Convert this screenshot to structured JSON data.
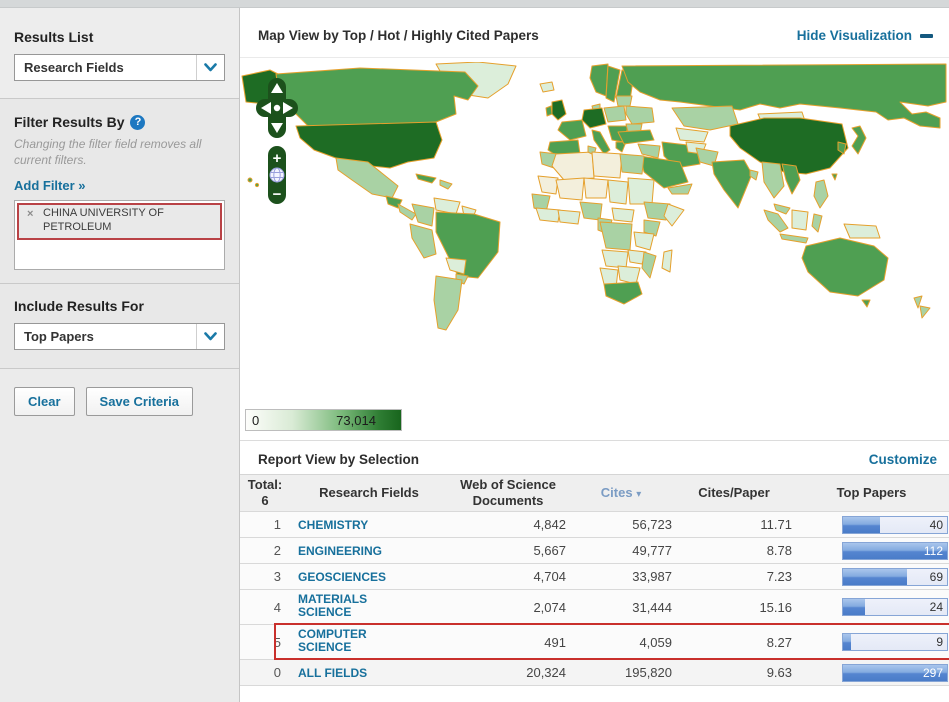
{
  "colors": {
    "accent_teal": "#17709c",
    "map_dark_green": "#1e6c24",
    "map_medium_green": "#4f9f52",
    "map_light_green": "#a9d2a4",
    "map_very_light_green": "#dceeda",
    "map_pale": "#f3efdc",
    "map_border_orange": "#e5a02c",
    "bar_blue": "#5585d0",
    "highlight_red": "#c9302c"
  },
  "sidebar": {
    "results_list": {
      "label": "Results List",
      "value": "Research Fields"
    },
    "filter": {
      "header": "Filter Results By",
      "help_icon": "?",
      "note": "Changing the filter field removes all current filters.",
      "add_filter": "Add Filter »",
      "chip": {
        "remove_icon": "×",
        "label": "CHINA UNIVERSITY OF PETROLEUM"
      }
    },
    "include_results": {
      "label": "Include Results For",
      "value": "Top Papers"
    },
    "buttons": {
      "clear": "Clear",
      "save": "Save Criteria"
    }
  },
  "map_panel": {
    "title": "Map View by Top / Hot / Highly Cited Papers",
    "hide_link": "Hide Visualization",
    "legend": {
      "min": "0",
      "max": "73,014"
    },
    "controls": {
      "zoom_in": "+",
      "zoom_out": "−"
    }
  },
  "report": {
    "title": "Report View by Selection",
    "customize": "Customize",
    "header": {
      "total_label": "Total:",
      "total_value": "6",
      "field": "Research Fields",
      "docs_line1": "Web of Science",
      "docs_line2": "Documents",
      "cites": "Cites",
      "sort_icon": "▾",
      "cites_per_paper": "Cites/Paper",
      "top_papers": "Top Papers"
    },
    "rows": [
      {
        "rank": "1",
        "field": "CHEMISTRY",
        "docs": "4,842",
        "cites": "56,723",
        "cpp": "11.71",
        "top": "40",
        "bar_pct": 36,
        "highlighted": false
      },
      {
        "rank": "2",
        "field": "ENGINEERING",
        "docs": "5,667",
        "cites": "49,777",
        "cpp": "8.78",
        "top": "112",
        "bar_pct": 100,
        "highlighted": false
      },
      {
        "rank": "3",
        "field": "GEOSCIENCES",
        "docs": "4,704",
        "cites": "33,987",
        "cpp": "7.23",
        "top": "69",
        "bar_pct": 62,
        "highlighted": false
      },
      {
        "rank": "4",
        "field": "MATERIALS SCIENCE",
        "docs": "2,074",
        "cites": "31,444",
        "cpp": "15.16",
        "top": "24",
        "bar_pct": 21,
        "highlighted": false
      },
      {
        "rank": "5",
        "field": "COMPUTER SCIENCE",
        "docs": "491",
        "cites": "4,059",
        "cpp": "8.27",
        "top": "9",
        "bar_pct": 8,
        "highlighted": true
      },
      {
        "rank": "0",
        "field": "ALL FIELDS",
        "docs": "20,324",
        "cites": "195,820",
        "cpp": "9.63",
        "top": "297",
        "bar_pct": 100,
        "highlighted": false
      }
    ]
  }
}
